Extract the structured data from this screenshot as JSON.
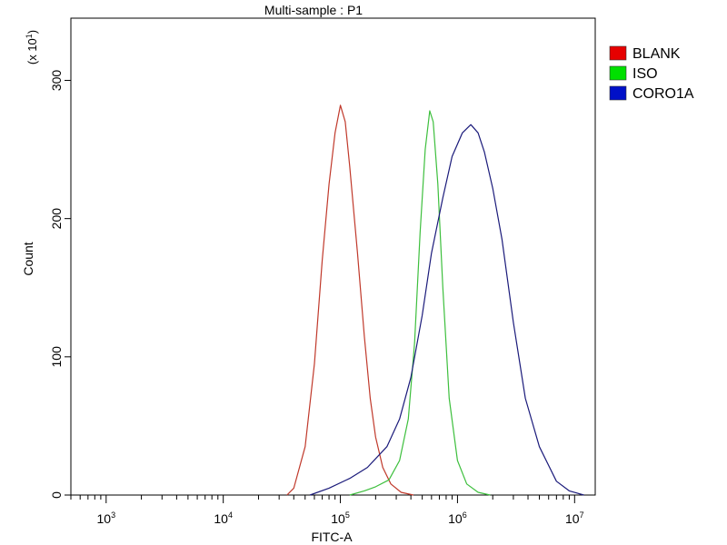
{
  "chart_data": {
    "type": "line",
    "title": "Multi-sample : P1",
    "xlabel": "FITC-A",
    "ylabel": "Count",
    "y_multiplier_label": "(x 10",
    "y_multiplier_exp": "1",
    "x_scale": "log",
    "xlim": [
      500,
      15000000
    ],
    "ylim": [
      0,
      345
    ],
    "x_ticks": [
      {
        "value": 1000,
        "base": "10",
        "exp": "3"
      },
      {
        "value": 10000,
        "base": "10",
        "exp": "4"
      },
      {
        "value": 100000,
        "base": "10",
        "exp": "5"
      },
      {
        "value": 1000000,
        "base": "10",
        "exp": "6"
      },
      {
        "value": 10000000,
        "base": "10",
        "exp": "7"
      }
    ],
    "y_ticks": [
      {
        "value": 0,
        "label": "0"
      },
      {
        "value": 100,
        "label": "100"
      },
      {
        "value": 200,
        "label": "200"
      },
      {
        "value": 300,
        "label": "300"
      }
    ],
    "grid": false,
    "legend_position": "top-right",
    "series": [
      {
        "name": "BLANK",
        "color": "#c0392b",
        "legend_color": "#e60000",
        "points": [
          [
            35000,
            0
          ],
          [
            40000,
            5
          ],
          [
            50000,
            35
          ],
          [
            60000,
            95
          ],
          [
            70000,
            170
          ],
          [
            80000,
            225
          ],
          [
            90000,
            262
          ],
          [
            100000,
            282
          ],
          [
            110000,
            270
          ],
          [
            120000,
            238
          ],
          [
            140000,
            175
          ],
          [
            160000,
            115
          ],
          [
            180000,
            70
          ],
          [
            200000,
            42
          ],
          [
            230000,
            20
          ],
          [
            270000,
            8
          ],
          [
            330000,
            2
          ],
          [
            420000,
            0
          ]
        ]
      },
      {
        "name": "ISO",
        "color": "#3dbf3d",
        "legend_color": "#00e000",
        "points": [
          [
            120000,
            0
          ],
          [
            160000,
            3
          ],
          [
            200000,
            6
          ],
          [
            260000,
            11
          ],
          [
            320000,
            25
          ],
          [
            380000,
            55
          ],
          [
            430000,
            110
          ],
          [
            480000,
            190
          ],
          [
            530000,
            250
          ],
          [
            580000,
            278
          ],
          [
            620000,
            270
          ],
          [
            680000,
            225
          ],
          [
            750000,
            150
          ],
          [
            850000,
            70
          ],
          [
            1000000,
            25
          ],
          [
            1200000,
            8
          ],
          [
            1500000,
            2
          ],
          [
            1900000,
            0
          ]
        ]
      },
      {
        "name": "CORO1A",
        "color": "#1a1a7a",
        "legend_color": "#0010c8",
        "points": [
          [
            55000,
            0
          ],
          [
            80000,
            5
          ],
          [
            120000,
            12
          ],
          [
            170000,
            20
          ],
          [
            250000,
            35
          ],
          [
            320000,
            55
          ],
          [
            400000,
            85
          ],
          [
            500000,
            130
          ],
          [
            600000,
            175
          ],
          [
            750000,
            215
          ],
          [
            900000,
            245
          ],
          [
            1100000,
            262
          ],
          [
            1300000,
            268
          ],
          [
            1500000,
            262
          ],
          [
            1700000,
            248
          ],
          [
            2000000,
            222
          ],
          [
            2400000,
            185
          ],
          [
            3000000,
            125
          ],
          [
            3800000,
            70
          ],
          [
            5000000,
            35
          ],
          [
            7000000,
            10
          ],
          [
            9000000,
            3
          ],
          [
            12000000,
            0
          ]
        ]
      }
    ]
  }
}
